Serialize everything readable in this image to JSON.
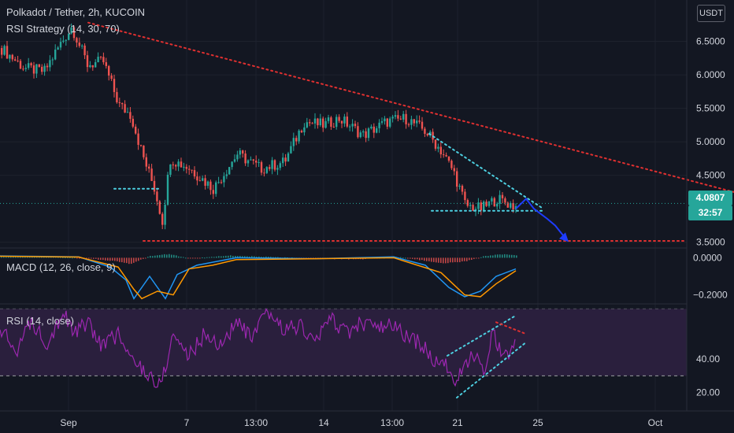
{
  "header": {
    "symbol_line": "Polkadot / Tether, 2h, KUCOIN",
    "strategy_line": "RSI Strategy (14, 30, 70)",
    "macd_label": "MACD (12, 26, close, 9)",
    "rsi_label": "RSI (14, close)",
    "currency": "USDT"
  },
  "price_tag": {
    "value": "4.0807",
    "countdown": "32:57"
  },
  "colors": {
    "background": "#131722",
    "grid": "#1e222d",
    "up": "#26a69a",
    "down": "#ef5350",
    "trend_red": "#e03030",
    "trend_cyan": "#4dd0e1",
    "projection": "#1e3cff",
    "macd_line": "#2196f3",
    "signal_line": "#ff9800",
    "rsi_line": "#9c27b0",
    "rsi_band": "#2a1f3d"
  },
  "chart_data": [
    {
      "type": "candlestick",
      "title": "Polkadot / Tether, 2h, KUCOIN",
      "y_ticks": [
        "6.5000",
        "6.0000",
        "5.5000",
        "5.0000",
        "4.5000",
        "3.5000"
      ],
      "ylim": [
        3.45,
        7.0
      ],
      "x_ticks": [
        "Sep",
        "7",
        "13:00",
        "14",
        "13:00",
        "21",
        "25",
        "Oct"
      ],
      "last_price": 4.0807,
      "anchors": [
        {
          "x": 0,
          "price": 6.4
        },
        {
          "x": 30,
          "price": 6.1
        },
        {
          "x": 55,
          "price": 6.05
        },
        {
          "x": 75,
          "price": 6.45
        },
        {
          "x": 90,
          "price": 6.72
        },
        {
          "x": 110,
          "price": 6.15
        },
        {
          "x": 130,
          "price": 6.2
        },
        {
          "x": 150,
          "price": 5.55
        },
        {
          "x": 165,
          "price": 5.4
        },
        {
          "x": 180,
          "price": 4.8
        },
        {
          "x": 195,
          "price": 4.3
        },
        {
          "x": 205,
          "price": 3.82
        },
        {
          "x": 215,
          "price": 4.75
        },
        {
          "x": 240,
          "price": 4.6
        },
        {
          "x": 270,
          "price": 4.3
        },
        {
          "x": 300,
          "price": 4.82
        },
        {
          "x": 330,
          "price": 4.6
        },
        {
          "x": 360,
          "price": 4.7
        },
        {
          "x": 385,
          "price": 5.3
        },
        {
          "x": 410,
          "price": 5.25
        },
        {
          "x": 430,
          "price": 5.35
        },
        {
          "x": 460,
          "price": 5.1
        },
        {
          "x": 490,
          "price": 5.3
        },
        {
          "x": 515,
          "price": 5.35
        },
        {
          "x": 540,
          "price": 5.15
        },
        {
          "x": 560,
          "price": 4.85
        },
        {
          "x": 575,
          "price": 4.55
        },
        {
          "x": 590,
          "price": 4.05
        },
        {
          "x": 610,
          "price": 4.0
        },
        {
          "x": 630,
          "price": 4.15
        },
        {
          "x": 650,
          "price": 4.05
        },
        {
          "x": 658,
          "price": 4.0
        }
      ],
      "annotations": {
        "descending_trendline": {
          "x": [
            112,
            932
          ],
          "price": [
            6.78,
            4.25
          ]
        },
        "support_line": {
          "x": [
            182,
            872
          ],
          "price": [
            3.52,
            3.52
          ]
        },
        "left_support_dotted": {
          "x": [
            145,
            205
          ],
          "price": [
            4.3,
            4.3
          ]
        },
        "wedge_upper": {
          "x": [
            545,
            690
          ],
          "price": [
            5.12,
            4.0
          ]
        },
        "wedge_lower": {
          "x": [
            548,
            690
          ],
          "price": [
            3.97,
            3.97
          ]
        },
        "projection_path": {
          "x": [
            655,
            668,
            678,
            695,
            705,
            720
          ],
          "price": [
            4.0,
            4.15,
            4.0,
            3.85,
            3.75,
            3.53
          ]
        }
      }
    },
    {
      "type": "line",
      "title": "MACD (12, 26, close, 9)",
      "y_ticks": [
        "0.0000",
        "−0.2000"
      ],
      "ylim": [
        -0.24,
        0.04
      ],
      "series": [
        {
          "name": "MACD",
          "x": [
            0,
            100,
            140,
            160,
            170,
            190,
            210,
            225,
            250,
            300,
            400,
            500,
            540,
            570,
            590,
            610,
            630,
            655
          ],
          "values": [
            0.01,
            0.005,
            -0.05,
            -0.12,
            -0.22,
            -0.1,
            -0.22,
            -0.09,
            -0.04,
            0.0,
            -0.005,
            0.005,
            -0.04,
            -0.16,
            -0.21,
            -0.18,
            -0.1,
            -0.06
          ]
        },
        {
          "name": "Signal",
          "x": [
            0,
            100,
            150,
            170,
            180,
            200,
            220,
            240,
            270,
            300,
            400,
            500,
            560,
            590,
            610,
            630,
            655
          ],
          "values": [
            0.008,
            0.004,
            -0.05,
            -0.17,
            -0.22,
            -0.18,
            -0.2,
            -0.06,
            -0.04,
            -0.01,
            -0.005,
            0.0,
            -0.08,
            -0.2,
            -0.21,
            -0.14,
            -0.07
          ]
        },
        {
          "name": "Histogram",
          "x": [
            0,
            60,
            110,
            150,
            165,
            190,
            215,
            240,
            290,
            330,
            400,
            460,
            500,
            530,
            560,
            590,
            615,
            640,
            655
          ],
          "values": [
            0.006,
            0.008,
            -0.002,
            -0.02,
            -0.035,
            0.01,
            0.02,
            -0.005,
            0.012,
            0.006,
            -0.005,
            -0.008,
            0.006,
            -0.01,
            -0.03,
            -0.02,
            0.01,
            0.02,
            0.012
          ]
        }
      ]
    },
    {
      "type": "line",
      "title": "RSI (14, close)",
      "y_ticks": [
        "40.00",
        "20.00"
      ],
      "ylim": [
        10,
        72
      ],
      "bands": [
        30,
        70
      ],
      "series": [
        {
          "name": "RSI",
          "x": [
            0,
            20,
            40,
            60,
            80,
            95,
            110,
            130,
            150,
            165,
            180,
            195,
            200,
            210,
            220,
            240,
            260,
            280,
            300,
            320,
            340,
            360,
            380,
            400,
            420,
            440,
            460,
            480,
            500,
            520,
            540,
            550,
            560,
            575,
            585,
            600,
            615,
            625,
            640,
            655
          ],
          "values": [
            58,
            45,
            62,
            50,
            68,
            55,
            62,
            48,
            55,
            40,
            35,
            28,
            22,
            35,
            55,
            42,
            55,
            48,
            62,
            52,
            68,
            58,
            60,
            50,
            65,
            55,
            62,
            58,
            60,
            52,
            48,
            35,
            42,
            27,
            30,
            42,
            35,
            55,
            42,
            48
          ]
        }
      ],
      "annotations": {
        "rising_upper": {
          "x": [
            568,
            655
          ],
          "rsi": [
            42,
            66
          ]
        },
        "rising_lower": {
          "x": [
            580,
            668
          ],
          "rsi": [
            17,
            50
          ]
        },
        "converging_red": {
          "x": [
            630,
            668
          ],
          "rsi": [
            62,
            55
          ]
        }
      }
    }
  ]
}
